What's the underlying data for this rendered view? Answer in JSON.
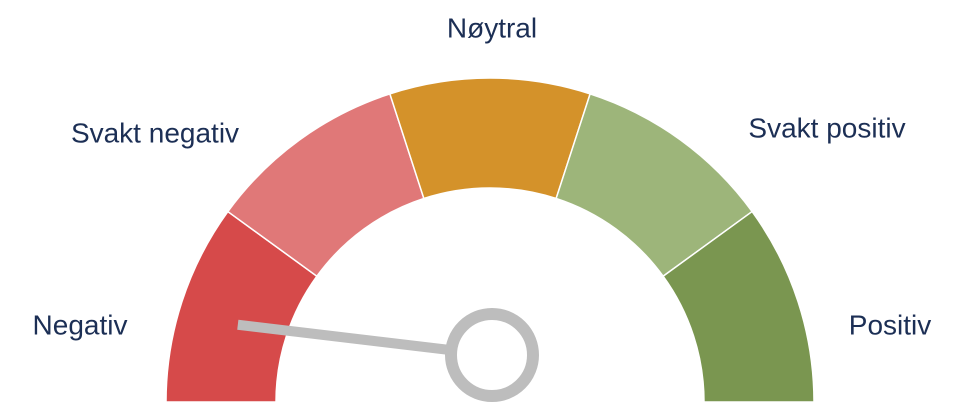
{
  "chart_data": {
    "type": "gauge",
    "categories": [
      "Negativ",
      "Svakt negativ",
      "Nøytral",
      "Svakt positiv",
      "Positiv"
    ],
    "colors": [
      "#d64a4a",
      "#e07878",
      "#d4922a",
      "#9db57a",
      "#7a9650"
    ],
    "xlim": [
      0,
      5
    ],
    "value": 0.19,
    "needle_color": "#bdbdbd"
  }
}
